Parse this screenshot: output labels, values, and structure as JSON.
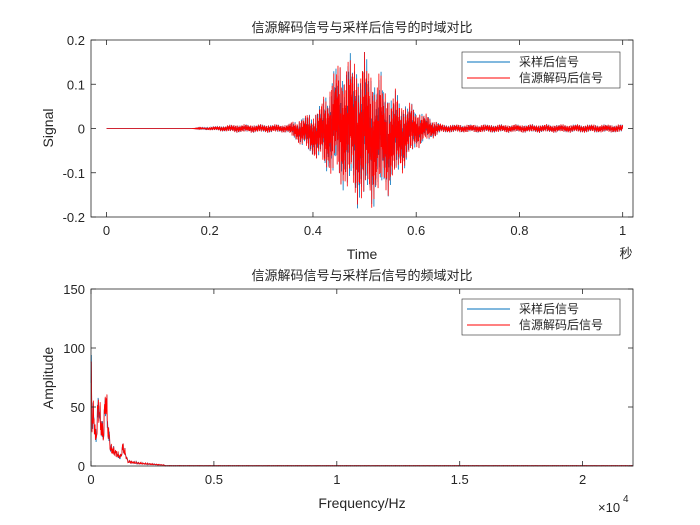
{
  "chart_data": [
    {
      "type": "line",
      "title": "信源解码信号与采样后信号的时域对比",
      "xlabel": "Time",
      "ylabel": "Signal",
      "x_unit_label": "秒",
      "xlim": [
        -0.03,
        1.02
      ],
      "ylim": [
        -0.2,
        0.2
      ],
      "xticks": [
        0,
        0.2,
        0.4,
        0.6,
        0.8,
        1
      ],
      "xtick_labels": [
        "0",
        "0.2",
        "0.4",
        "0.6",
        "0.8",
        "1"
      ],
      "yticks": [
        -0.2,
        -0.1,
        0,
        0.1,
        0.2
      ],
      "ytick_labels": [
        "-0.2",
        "-0.1",
        "0",
        "0.1",
        "0.2"
      ],
      "grid": false,
      "legend_position": "top-right",
      "series": [
        {
          "name": "采样后信号",
          "color": "#0072BD",
          "x": [
            0,
            0.165,
            0.25,
            0.35,
            0.41,
            0.45,
            0.5,
            0.55,
            0.6,
            0.65,
            1.0
          ],
          "y_envelope_max": [
            0,
            0,
            0.01,
            0.01,
            0.05,
            0.17,
            0.18,
            0.1,
            0.05,
            0.01,
            0.01
          ],
          "y_envelope_min": [
            0,
            0,
            -0.01,
            -0.01,
            -0.08,
            -0.14,
            -0.2,
            -0.15,
            -0.05,
            -0.01,
            -0.01
          ]
        },
        {
          "name": "信源解码后信号",
          "color": "#FF0000",
          "x": [
            0,
            0.165,
            0.25,
            0.35,
            0.41,
            0.45,
            0.5,
            0.55,
            0.6,
            0.65,
            1.0
          ],
          "y_envelope_max": [
            0,
            0,
            0.01,
            0.01,
            0.05,
            0.17,
            0.18,
            0.1,
            0.05,
            0.01,
            0.01
          ],
          "y_envelope_min": [
            0,
            0,
            -0.01,
            -0.01,
            -0.08,
            -0.14,
            -0.2,
            -0.15,
            -0.05,
            -0.01,
            -0.01
          ]
        }
      ]
    },
    {
      "type": "line",
      "title": "信源解码信号与采样后信号的频域对比",
      "xlabel": "Frequency/Hz",
      "ylabel": "Amplitude",
      "x_exponent_label": "×10",
      "x_exponent": "4",
      "xlim": [
        0,
        22050
      ],
      "ylim": [
        0,
        150
      ],
      "xticks": [
        0,
        5000,
        10000,
        15000,
        20000
      ],
      "xtick_labels": [
        "0",
        "0.5",
        "1",
        "1.5",
        "2"
      ],
      "yticks": [
        0,
        50,
        100,
        150
      ],
      "ytick_labels": [
        "0",
        "50",
        "100",
        "150"
      ],
      "grid": false,
      "legend_position": "top-right",
      "series": [
        {
          "name": "采样后信号",
          "color": "#0072BD",
          "x": [
            0,
            40,
            100,
            200,
            300,
            420,
            500,
            600,
            700,
            800,
            1000,
            1200,
            1300,
            1500,
            2000,
            2500,
            3000,
            22050
          ],
          "y": [
            128,
            50,
            60,
            30,
            70,
            45,
            35,
            80,
            40,
            20,
            15,
            10,
            22,
            5,
            3,
            2,
            1,
            0
          ]
        },
        {
          "name": "信源解码后信号",
          "color": "#FF0000",
          "x": [
            0,
            40,
            100,
            200,
            300,
            420,
            500,
            600,
            700,
            800,
            1000,
            1200,
            1300,
            1500,
            2000,
            2500,
            3000,
            22050
          ],
          "y": [
            128,
            50,
            60,
            30,
            70,
            45,
            35,
            80,
            40,
            20,
            15,
            10,
            22,
            5,
            3,
            2,
            1,
            0
          ]
        }
      ]
    }
  ]
}
